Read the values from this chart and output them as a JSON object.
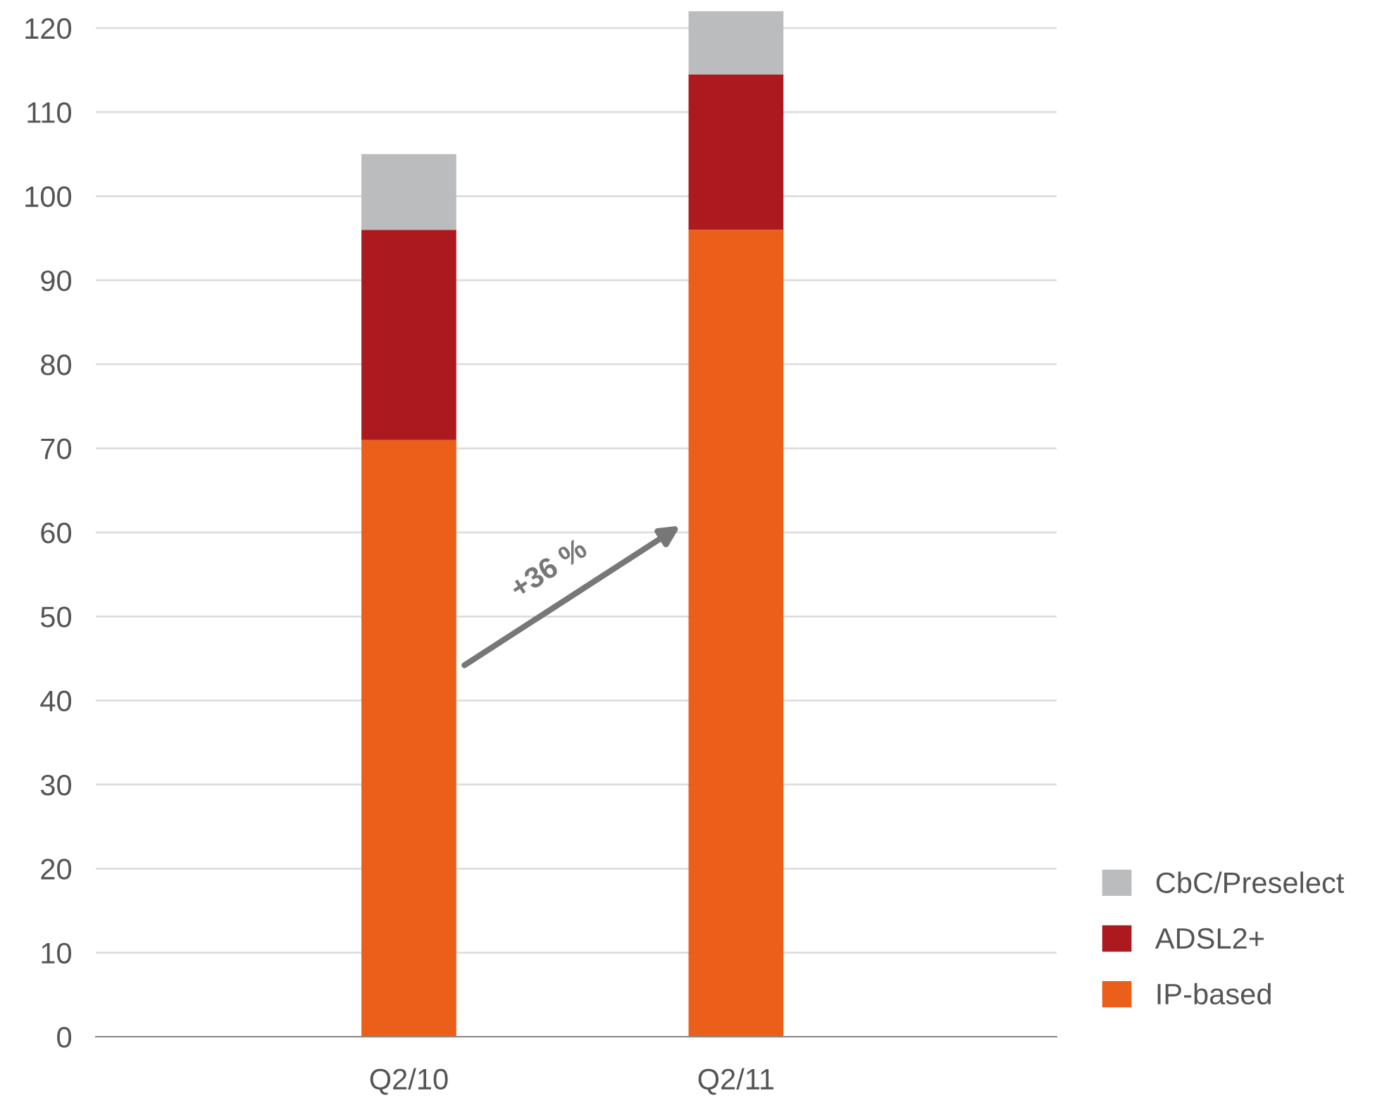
{
  "chart_data": {
    "type": "bar",
    "stacked": true,
    "categories": [
      "Q2/10",
      "Q2/11"
    ],
    "series": [
      {
        "name": "IP-based",
        "color": "#eb5f1b",
        "values": [
          71,
          96
        ]
      },
      {
        "name": "ADSL2+",
        "color": "#ac1a1f",
        "values": [
          25,
          18.5
        ]
      },
      {
        "name": "CbC/Preselect",
        "color": "#bbbcbe",
        "values": [
          9,
          7.5
        ]
      }
    ],
    "ylim": [
      0,
      122.5
    ],
    "yticks": [
      0,
      10,
      20,
      30,
      40,
      50,
      60,
      70,
      80,
      90,
      100,
      110,
      120
    ],
    "grid": "y",
    "legend": "bottom right",
    "annotations": [
      "+36 %"
    ]
  }
}
